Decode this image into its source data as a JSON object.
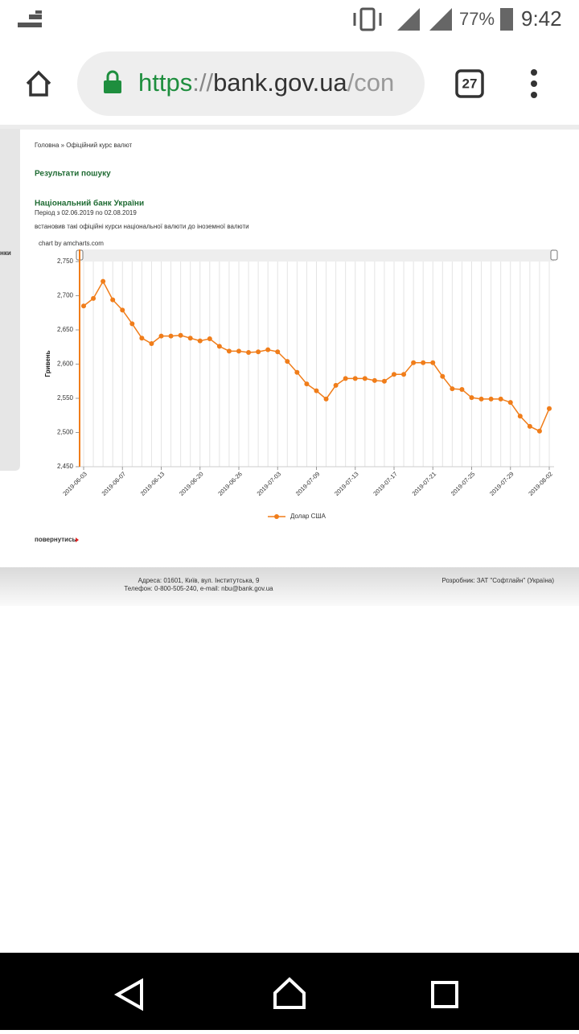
{
  "status_bar": {
    "battery": "77%",
    "time": "9:42"
  },
  "browser": {
    "url": {
      "scheme": "https",
      "separator": "://",
      "host": "bank.gov.ua",
      "path": "/con"
    },
    "tab_count": "27"
  },
  "page": {
    "sidebar_fragment": "нки",
    "breadcrumb": "Головна » Офіційний курс валют",
    "heading": "Результати пошуку",
    "bank_name": "Національний банк України",
    "period": "Період з 02.06.2019 по 02.08.2019",
    "description": "встановив такі офіційні курси національної валюти до іноземної валюти",
    "chart_credit": "chart by amcharts.com",
    "back_link": "повернутись",
    "footer": {
      "address": "Адреса: 01601, Київ, вул. Інститутська, 9",
      "phone": "Телефон: 0-800-505-240, e-mail: nbu@bank.gov.ua",
      "developer": "Розробник: ЗАТ \"Софтлайн\" (Україна)"
    }
  },
  "chart_data": {
    "type": "line",
    "y_label": "Гривень",
    "categories": [
      "2019-06-03",
      null,
      null,
      null,
      "2019-06-07",
      null,
      null,
      null,
      "2019-06-13",
      null,
      null,
      null,
      "2019-06-20",
      null,
      null,
      null,
      "2019-06-26",
      null,
      null,
      null,
      "2019-07-03",
      null,
      null,
      null,
      "2019-07-09",
      null,
      null,
      null,
      "2019-07-13",
      null,
      null,
      null,
      "2019-07-17",
      null,
      null,
      null,
      "2019-07-21",
      null,
      null,
      null,
      "2019-07-25",
      null,
      null,
      null,
      "2019-07-29",
      null,
      null,
      null,
      "2019-08-02"
    ],
    "series": [
      {
        "name": "Долар США",
        "color": "#f07d1a",
        "values": [
          2685,
          2696,
          2721,
          2694,
          2679,
          2659,
          2638,
          2630,
          2641,
          2641,
          2642,
          2638,
          2634,
          2637,
          2626,
          2619,
          2619,
          2617,
          2618,
          2621,
          2618,
          2604,
          2588,
          2571,
          2561,
          2549,
          2569,
          2579,
          2579,
          2579,
          2576,
          2575,
          2585,
          2585,
          2602,
          2602,
          2602,
          2582,
          2564,
          2563,
          2551,
          2549,
          2549,
          2549,
          2544,
          2524,
          2509,
          2502,
          2535
        ]
      }
    ],
    "ylim": [
      2450,
      2750
    ],
    "yticks": [
      {
        "value": 2450,
        "label": "2,450"
      },
      {
        "value": 2500,
        "label": "2,500"
      },
      {
        "value": 2550,
        "label": "2,550"
      },
      {
        "value": 2600,
        "label": "2,600"
      },
      {
        "value": 2650,
        "label": "2,650"
      },
      {
        "value": 2700,
        "label": "2,700"
      },
      {
        "value": 2750,
        "label": "2,750"
      }
    ]
  }
}
